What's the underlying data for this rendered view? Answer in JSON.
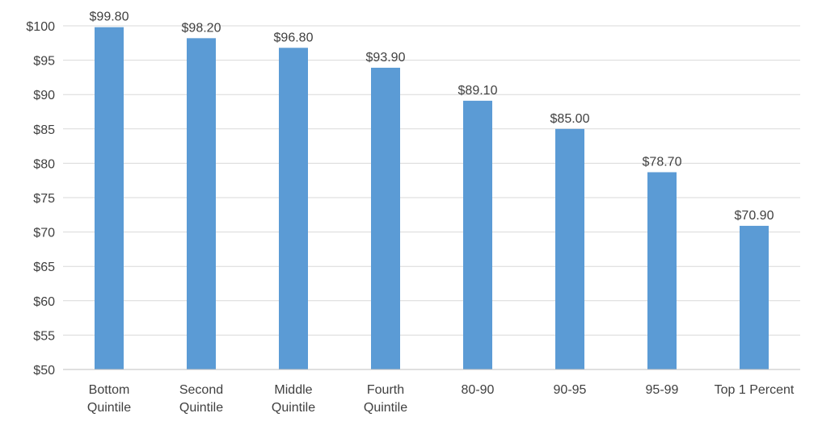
{
  "chart_data": {
    "type": "bar",
    "title": "",
    "xlabel": "",
    "ylabel": "",
    "ylim": [
      50,
      100
    ],
    "ytick_step": 5,
    "ytick_prefix": "$",
    "grid": true,
    "legend": "none",
    "bar_color": "#5b9bd5",
    "categories": [
      [
        "Bottom",
        "Quintile"
      ],
      [
        "Second",
        "Quintile"
      ],
      [
        "Middle",
        "Quintile"
      ],
      [
        "Fourth",
        "Quintile"
      ],
      [
        "80-90"
      ],
      [
        "90-95"
      ],
      [
        "95-99"
      ],
      [
        "Top 1 Percent"
      ]
    ],
    "values": [
      99.8,
      98.2,
      96.8,
      93.9,
      89.1,
      85.0,
      78.7,
      70.9
    ],
    "data_labels": [
      "$99.80",
      "$98.20",
      "$96.80",
      "$93.90",
      "$89.10",
      "$85.00",
      "$78.70",
      "$70.90"
    ]
  }
}
